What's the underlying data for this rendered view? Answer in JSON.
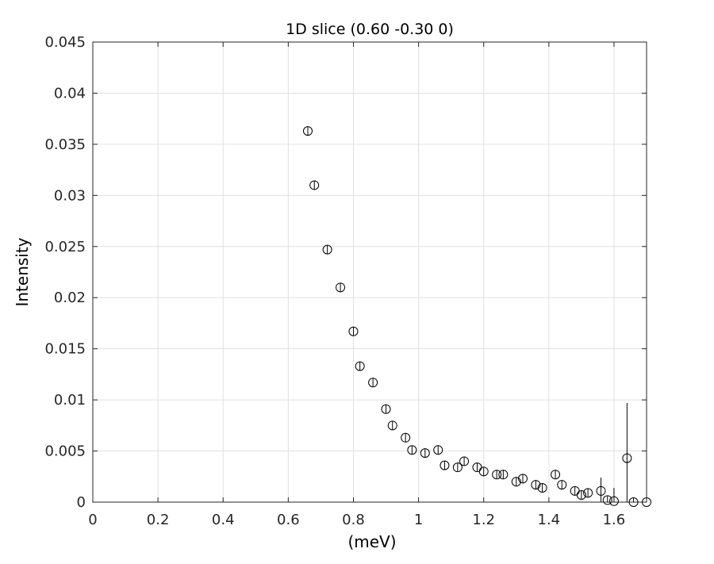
{
  "chart_data": {
    "type": "scatter",
    "title": "1D slice (0.60 -0.30 0)",
    "xlabel": "(meV)",
    "ylabel": "Intensity",
    "xlim": [
      0,
      1.7
    ],
    "ylim": [
      0,
      0.045
    ],
    "xticks": [
      0,
      0.2,
      0.4,
      0.6,
      0.8,
      1,
      1.2,
      1.4,
      1.6
    ],
    "yticks": [
      0,
      0.005,
      0.01,
      0.015,
      0.02,
      0.025,
      0.03,
      0.035,
      0.04,
      0.045
    ],
    "xtick_labels": [
      "0",
      "0.2",
      "0.4",
      "0.6",
      "0.8",
      "1",
      "1.2",
      "1.4",
      "1.6"
    ],
    "ytick_labels": [
      "0",
      "0.005",
      "0.01",
      "0.015",
      "0.02",
      "0.025",
      "0.03",
      "0.035",
      "0.04",
      "0.045"
    ],
    "grid": true,
    "marker": "open-circle",
    "error_bars": true,
    "colors": {
      "marker": "#000000",
      "grid": "#e0e0e0",
      "axis": "#262626"
    },
    "series": [
      {
        "x": [
          0.66,
          0.68,
          0.72,
          0.76,
          0.8,
          0.82,
          0.86,
          0.9,
          0.92,
          0.96,
          0.98,
          1.02,
          1.06,
          1.08,
          1.12,
          1.14,
          1.18,
          1.2,
          1.24,
          1.26,
          1.3,
          1.32,
          1.36,
          1.38,
          1.42,
          1.44,
          1.48,
          1.5,
          1.52,
          1.56,
          1.58,
          1.6,
          1.64,
          1.66,
          1.7
        ],
        "y": [
          0.0363,
          0.031,
          0.0247,
          0.021,
          0.0167,
          0.0133,
          0.0117,
          0.0091,
          0.0075,
          0.0063,
          0.0051,
          0.0048,
          0.0051,
          0.0036,
          0.0034,
          0.004,
          0.0034,
          0.003,
          0.0027,
          0.0027,
          0.002,
          0.0023,
          0.0017,
          0.0014,
          0.0027,
          0.0017,
          0.0011,
          0.0007,
          0.0009,
          0.0011,
          0.0002,
          0.0001,
          0.0043,
          0.0,
          0.0
        ],
        "yerr": [
          0.0004,
          0.0004,
          0.0004,
          0.0004,
          0.0004,
          0.0004,
          0.0004,
          0.0004,
          0.0004,
          0.0004,
          0.0004,
          0.0004,
          0.0004,
          0.0004,
          0.0004,
          0.0004,
          0.0004,
          0.0004,
          0.0004,
          0.0004,
          0.0004,
          0.0004,
          0.0004,
          0.0004,
          0.0004,
          0.0004,
          0.0004,
          0.0004,
          0.0004,
          0.0013,
          0.0004,
          0.0013,
          0.0054,
          0.0004,
          0.0004
        ]
      }
    ]
  }
}
